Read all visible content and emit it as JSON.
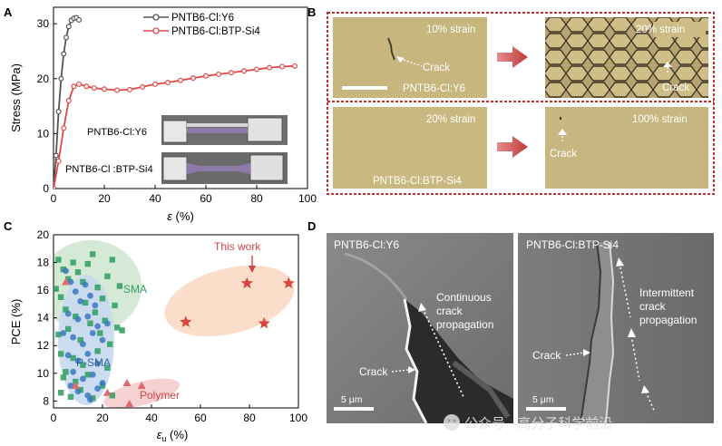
{
  "panels": {
    "a": {
      "letter": "A",
      "legend": [
        "PNTB6-Cl:Y6",
        "PNTB6-Cl:BTP-Si4"
      ],
      "photo_labels": [
        "PNTB6-Cl:Y6",
        "PNTB6-Cl :BTP-Si4"
      ],
      "ylabel": "Stress (MPa)",
      "xlabel_sym": "ε",
      "xlabel_unit": " (%)"
    },
    "b": {
      "letter": "B",
      "img1_strain": "10% strain",
      "img1_crack": "Crack",
      "img1_sample": "PNTB6-Cl:Y6",
      "img2_strain": "20% strain",
      "img2_crack": "Crack",
      "img3_strain": "20% strain",
      "img3_sample": "PNTB6-Cl:BTP-Si4",
      "img4_strain": "100% strain",
      "img4_crack": "Crack"
    },
    "c": {
      "letter": "C",
      "ylabel": "PCE (%)",
      "xlabel_sym": "ε",
      "xlabel_sub": "u",
      "xlabel_unit": " (%)",
      "sma": "SMA",
      "psma": "P-SMA",
      "polymer": "Polymer",
      "this_work": "This work"
    },
    "d": {
      "letter": "D",
      "left_title": "PNTB6-Cl:Y6",
      "left_note": [
        "Continuous",
        "crack",
        "propagation"
      ],
      "left_crack": "Crack",
      "left_scale": "5 μm",
      "right_title": "PNTB6-Cl:BTP-Si4",
      "right_note": [
        "Intermittent",
        "crack",
        "propagation"
      ],
      "right_crack": "Crack",
      "right_scale": "5 μm"
    }
  },
  "watermark": "公众号 · 高分子科学前沿",
  "colors": {
    "y6": "#555555",
    "btp": "#e04848",
    "sma_fill": "#cfe8d2",
    "psma_fill": "#c8d9ef",
    "polymer_fill": "#f6cfcf",
    "thiswork_fill": "#fbdcc6",
    "sma_marker": "#2e9e5e",
    "psma_marker": "#3a78c0",
    "polymer_marker": "#e06a6a",
    "star": "#d9453f",
    "micro_bg": "#c8b87e",
    "micro_border": "#c0302c"
  },
  "chart_data": [
    {
      "panel": "A",
      "type": "line",
      "xlabel": "ε (%)",
      "ylabel": "Stress (MPa)",
      "xlim": [
        0,
        100
      ],
      "ylim": [
        0,
        33
      ],
      "xticks": [
        0,
        20,
        40,
        60,
        80,
        100
      ],
      "yticks": [
        0,
        10,
        20,
        30
      ],
      "series": [
        {
          "name": "PNTB6-Cl:Y6",
          "x": [
            0,
            1,
            2,
            3,
            4,
            5,
            6,
            7,
            8,
            9,
            10
          ],
          "y": [
            0,
            6,
            14,
            20,
            24.5,
            27.5,
            29.5,
            30.6,
            31,
            31.1,
            30.7
          ]
        },
        {
          "name": "PNTB6-Cl:BTP-Si4",
          "x": [
            0,
            2,
            4,
            6,
            8,
            10,
            13,
            16,
            20,
            25,
            30,
            35,
            40,
            45,
            50,
            55,
            60,
            65,
            70,
            75,
            80,
            85,
            90,
            95
          ],
          "y": [
            0,
            5,
            11,
            16,
            18.6,
            19,
            18.6,
            18.3,
            18.1,
            17.9,
            18,
            18.5,
            19,
            19.3,
            19.7,
            20.1,
            20.5,
            20.8,
            21.1,
            21.4,
            21.7,
            22,
            22.2,
            22.3
          ]
        }
      ]
    },
    {
      "panel": "C",
      "type": "scatter",
      "xlabel": "εu (%)",
      "ylabel": "PCE (%)",
      "xlim": [
        0,
        100
      ],
      "ylim": [
        7.5,
        20
      ],
      "xticks": [
        0,
        20,
        40,
        60,
        80,
        100
      ],
      "yticks": [
        8,
        10,
        12,
        14,
        16,
        18,
        20
      ],
      "series": [
        {
          "name": "SMA",
          "points": [
            [
              2,
              18.2
            ],
            [
              4,
              17.5
            ],
            [
              6,
              16.8
            ],
            [
              3,
              15.5
            ],
            [
              8,
              18
            ],
            [
              10,
              17.3
            ],
            [
              12,
              16.6
            ],
            [
              14,
              17.9
            ],
            [
              16,
              18.6
            ],
            [
              18,
              16.2
            ],
            [
              20,
              15.4
            ],
            [
              22,
              17
            ],
            [
              24,
              18.2
            ],
            [
              5,
              14.6
            ],
            [
              9,
              14.1
            ],
            [
              13,
              15.1
            ],
            [
              17,
              14.4
            ],
            [
              21,
              13.8
            ],
            [
              25,
              14.9
            ],
            [
              27,
              16.3
            ],
            [
              2,
              12.8
            ],
            [
              6,
              13.2
            ],
            [
              11,
              12.4
            ],
            [
              15,
              13.6
            ],
            [
              19,
              12.9
            ],
            [
              23,
              12.1
            ],
            [
              26,
              13.3
            ],
            [
              3,
              11.4
            ],
            [
              8,
              11.1
            ],
            [
              12,
              10.6
            ],
            [
              18,
              11.6
            ],
            [
              22,
              10.4
            ],
            [
              4,
              9.7
            ],
            [
              9,
              9.4
            ],
            [
              14,
              9.9
            ],
            [
              20,
              9.1
            ],
            [
              3,
              8.6
            ],
            [
              7,
              8.3
            ],
            [
              11,
              8.8
            ],
            [
              16,
              8.2
            ],
            [
              24,
              8.4
            ],
            [
              28,
              13.1
            ],
            [
              1,
              16.1
            ],
            [
              5,
              10.1
            ]
          ]
        },
        {
          "name": "P-SMA",
          "points": [
            [
              5,
              17.4
            ],
            [
              7,
              16.6
            ],
            [
              9,
              15.9
            ],
            [
              11,
              15.2
            ],
            [
              13,
              16.4
            ],
            [
              15,
              15.6
            ],
            [
              17,
              14.9
            ],
            [
              6,
              14.3
            ],
            [
              10,
              13.9
            ],
            [
              14,
              14.1
            ],
            [
              18,
              13.4
            ],
            [
              8,
              12.6
            ],
            [
              12,
              12.1
            ],
            [
              16,
              12.9
            ],
            [
              20,
              12.4
            ],
            [
              6,
              11.3
            ],
            [
              10,
              10.9
            ],
            [
              14,
              11.4
            ],
            [
              18,
              10.7
            ],
            [
              8,
              10.1
            ],
            [
              12,
              9.6
            ],
            [
              16,
              9.9
            ],
            [
              20,
              9.3
            ],
            [
              10,
              8.7
            ],
            [
              14,
              8.4
            ],
            [
              18,
              8.9
            ],
            [
              22,
              13.6
            ],
            [
              4,
              12.9
            ],
            [
              7,
              9.1
            ],
            [
              15,
              8.1
            ]
          ]
        },
        {
          "name": "Polymer",
          "points": [
            [
              5,
              16.6
            ],
            [
              9,
              9.1
            ],
            [
              22,
              8.6
            ],
            [
              30,
              9.3
            ],
            [
              36,
              9.1
            ],
            [
              31,
              7.8
            ]
          ]
        },
        {
          "name": "This work",
          "points": [
            [
              54,
              13.7
            ],
            [
              79,
              16.5
            ],
            [
              96,
              16.5
            ],
            [
              86,
              13.6
            ]
          ]
        }
      ]
    }
  ]
}
